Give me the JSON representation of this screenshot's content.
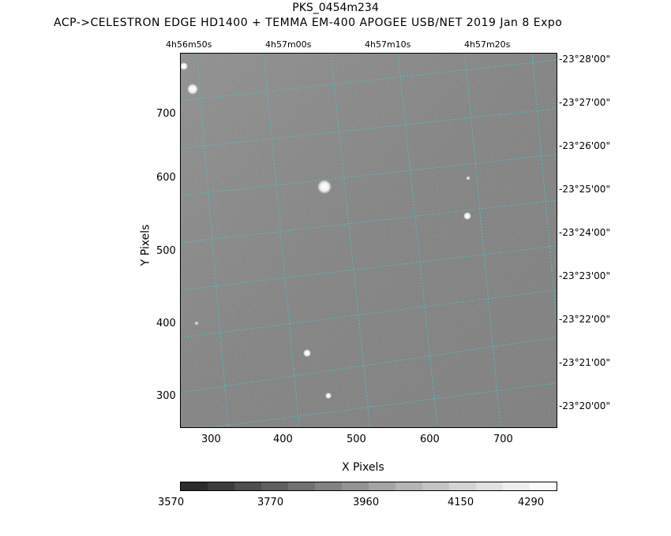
{
  "header": {
    "title": "PKS_0454m234",
    "subtitle": "ACP->CELESTRON EDGE HD1400 + TEMMA EM-400 APOGEE USB/NET   2019 Jan  8    Expo"
  },
  "plot": {
    "xlabel": "X Pixels",
    "ylabel": "Y Pixels",
    "x_ticks": [
      "300",
      "400",
      "500",
      "600",
      "700"
    ],
    "y_ticks": [
      "700",
      "600",
      "500",
      "400",
      "300"
    ],
    "ra_ticks": [
      "4h56m50s",
      "4h57m00s",
      "4h57m10s",
      "4h57m20s"
    ],
    "dec_ticks": [
      "-23°28'00\"",
      "-23°27'00\"",
      "-23°26'00\"",
      "-23°25'00\"",
      "-23°24'00\"",
      "-23°23'00\"",
      "-23°22'00\"",
      "-23°21'00\"",
      "-23°20'00\""
    ],
    "grid_color": "#40c8d0",
    "background_color": "#7a7a7a"
  },
  "colorbar": {
    "ticks": [
      "3570",
      "3770",
      "3960",
      "4150",
      "4290"
    ]
  }
}
